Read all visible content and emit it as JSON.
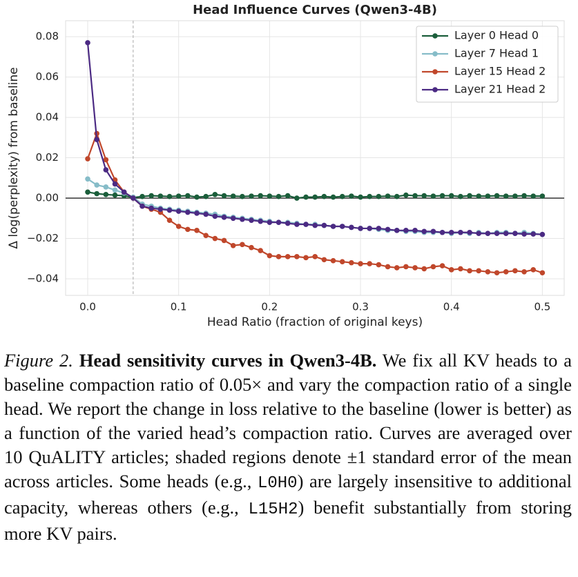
{
  "chart_data": {
    "type": "line",
    "title": "Head Influence Curves (Qwen3-4B)",
    "x_label": "Head Ratio (fraction of original keys)",
    "y_label": "Δ log(perplexity) from baseline",
    "x": [
      0,
      0.01,
      0.02,
      0.03,
      0.04,
      0.05,
      0.06,
      0.07,
      0.08,
      0.09,
      0.1,
      0.11,
      0.12,
      0.13,
      0.14,
      0.15,
      0.16,
      0.17,
      0.18,
      0.19,
      0.2,
      0.21,
      0.22,
      0.23,
      0.24,
      0.25,
      0.26,
      0.27,
      0.28,
      0.29,
      0.3,
      0.31,
      0.32,
      0.33,
      0.34,
      0.35,
      0.36,
      0.37,
      0.38,
      0.39,
      0.4,
      0.41,
      0.42,
      0.43,
      0.44,
      0.45,
      0.46,
      0.47,
      0.48,
      0.49,
      0.5
    ],
    "series": [
      {
        "name": "Layer 0 Head 0",
        "color": "#1b5e3b",
        "values": [
          0.003,
          0.0022,
          0.0018,
          0.0015,
          0.0012,
          0.0003,
          0.0008,
          0.0012,
          0.001,
          0.0008,
          0.001,
          0.0012,
          0.0005,
          0.0008,
          0.0018,
          0.0012,
          0.001,
          0.0008,
          0.001,
          0.0012,
          0.001,
          0.0008,
          0.0012,
          0.0,
          0.0005,
          0.0005,
          0.0008,
          0.0005,
          0.0008,
          0.001,
          0.0005,
          0.0008,
          0.0008,
          0.001,
          0.0008,
          0.0015,
          0.0012,
          0.0012,
          0.001,
          0.0012,
          0.0012,
          0.0008,
          0.0012,
          0.001,
          0.001,
          0.0012,
          0.001,
          0.001,
          0.0012,
          0.001,
          0.001
        ]
      },
      {
        "name": "Layer 7 Head 1",
        "color": "#86bcc8",
        "values": [
          0.0095,
          0.0065,
          0.0055,
          0.004,
          0.0025,
          0.0005,
          -0.003,
          -0.004,
          -0.005,
          -0.0055,
          -0.006,
          -0.0065,
          -0.007,
          -0.0075,
          -0.008,
          -0.009,
          -0.0095,
          -0.01,
          -0.0105,
          -0.011,
          -0.0115,
          -0.012,
          -0.012,
          -0.0125,
          -0.013,
          -0.013,
          -0.0135,
          -0.014,
          -0.014,
          -0.0145,
          -0.015,
          -0.015,
          -0.0155,
          -0.016,
          -0.016,
          -0.0165,
          -0.0165,
          -0.017,
          -0.017,
          -0.017,
          -0.0175,
          -0.017,
          -0.0175,
          -0.017,
          -0.0175,
          -0.017,
          -0.017,
          -0.0175,
          -0.017,
          -0.0175,
          -0.018
        ]
      },
      {
        "name": "Layer 15 Head 2",
        "color": "#c0472b",
        "values": [
          0.0195,
          0.032,
          0.019,
          0.009,
          0.003,
          0,
          -0.004,
          -0.0055,
          -0.007,
          -0.011,
          -0.014,
          -0.0155,
          -0.016,
          -0.0185,
          -0.02,
          -0.021,
          -0.0235,
          -0.023,
          -0.0245,
          -0.026,
          -0.0285,
          -0.029,
          -0.029,
          -0.029,
          -0.0295,
          -0.029,
          -0.0305,
          -0.031,
          -0.0315,
          -0.032,
          -0.0325,
          -0.0325,
          -0.033,
          -0.034,
          -0.0345,
          -0.034,
          -0.0345,
          -0.035,
          -0.034,
          -0.0335,
          -0.0355,
          -0.035,
          -0.036,
          -0.036,
          -0.0365,
          -0.037,
          -0.0365,
          -0.036,
          -0.0365,
          -0.0355,
          -0.037
        ]
      },
      {
        "name": "Layer 21 Head 2",
        "color": "#4b2a83",
        "values": [
          0.077,
          0.029,
          0.014,
          0.007,
          0.003,
          0,
          -0.004,
          -0.005,
          -0.0055,
          -0.006,
          -0.0065,
          -0.007,
          -0.0075,
          -0.008,
          -0.009,
          -0.0095,
          -0.01,
          -0.0105,
          -0.011,
          -0.0115,
          -0.012,
          -0.012,
          -0.0125,
          -0.013,
          -0.013,
          -0.0135,
          -0.0135,
          -0.014,
          -0.014,
          -0.0145,
          -0.015,
          -0.015,
          -0.015,
          -0.0155,
          -0.016,
          -0.016,
          -0.016,
          -0.0165,
          -0.0165,
          -0.017,
          -0.017,
          -0.017,
          -0.017,
          -0.0175,
          -0.0175,
          -0.0175,
          -0.0175,
          -0.0175,
          -0.0178,
          -0.0178,
          -0.018
        ]
      }
    ],
    "xlim": [
      -0.0243,
      0.524
    ],
    "ylim": [
      -0.0482,
      0.0879
    ],
    "xticks": [
      {
        "value": 0,
        "label": "0.0"
      },
      0.1,
      0.2,
      0.3,
      0.4,
      0.5
    ],
    "yticks": [
      {
        "value": -0.04,
        "label": "−0.04"
      },
      {
        "value": -0.02,
        "label": "−0.02"
      },
      {
        "value": 0,
        "label": "0.00"
      },
      0.02,
      0.04,
      0.06,
      0.08
    ],
    "vline": 0.05,
    "hline": 0,
    "grid": true,
    "legend": "upper right"
  },
  "caption": {
    "label": "Figure 2.",
    "title": "Head sensitivity curves in Qwen3-4B.",
    "body": [
      "We fix all KV heads to a baseline compaction ratio of 0.05× and vary the compaction ratio of a single head. We report the change in loss relative to the baseline (lower is better) as a function of the varied head’s compaction ratio. Curves are averaged over 10 QuALITY articles; shaded regions denote ±1 standard error of the mean across articles. Some heads (e.g., ",
      "L0H0",
      ") are largely insensitive to additional capacity, whereas others (e.g., ",
      "L15H2",
      ") benefit substantially from storing more KV pairs."
    ]
  }
}
